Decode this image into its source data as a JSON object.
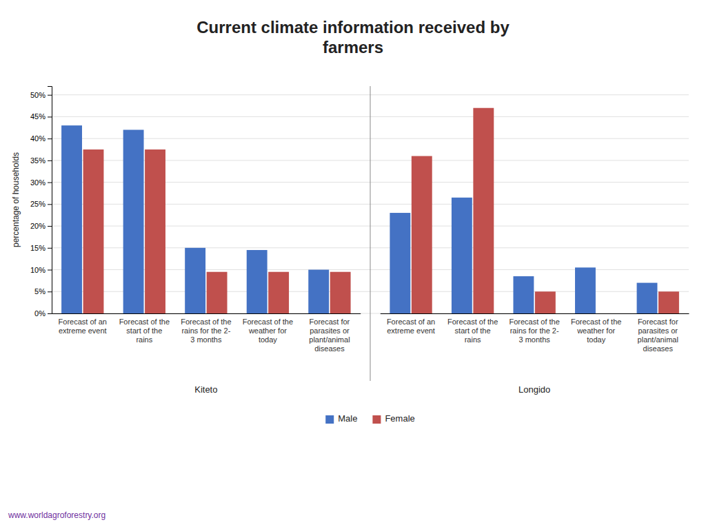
{
  "chart_data": {
    "type": "bar",
    "title": "Current climate information received by\nfarmers",
    "ylabel": "percentage of households",
    "groups": [
      {
        "label": "Kiteto",
        "categories": [
          "Forecast of an\nextreme event",
          "Forecast of the\nstart of the\nrains",
          "Forecast of the\nrains for the 2-\n3 months",
          "Forecast of the\nweather for\ntoday",
          "Forecast for\nparasites or\nplant/animal\ndiseases"
        ]
      },
      {
        "label": "Longido",
        "categories": [
          "Forecast of an\nextreme event",
          "Forecast of the\nstart of the\nrains",
          "Forecast of the\nrains for the 2-\n3 months",
          "Forecast of the\nweather for\ntoday",
          "Forecast for\nparasites or\nplant/animal\ndiseases"
        ]
      }
    ],
    "series": [
      {
        "name": "Male",
        "color": "#4472C4",
        "values": [
          43,
          42,
          15,
          14.5,
          10,
          23,
          26.5,
          8.5,
          10.5,
          7
        ]
      },
      {
        "name": "Female",
        "color": "#C0504D",
        "values": [
          37.5,
          37.5,
          9.5,
          9.5,
          9.5,
          36,
          47,
          5,
          0,
          5
        ]
      }
    ],
    "ylim": [
      0,
      52
    ],
    "yticks": [
      {
        "value": 0,
        "label": "0%"
      },
      {
        "value": 5,
        "label": "5%"
      },
      {
        "value": 10,
        "label": "10%"
      },
      {
        "value": 15,
        "label": "15%"
      },
      {
        "value": 20,
        "label": "20%"
      },
      {
        "value": 25,
        "label": "25%"
      },
      {
        "value": 30,
        "label": "30%"
      },
      {
        "value": 35,
        "label": "35%"
      },
      {
        "value": 40,
        "label": "40%"
      },
      {
        "value": 45,
        "label": "45%"
      },
      {
        "value": 50,
        "label": "50%"
      }
    ],
    "grid": true,
    "annotations": [
      {
        "text": "www.worldagroforestry.org",
        "color": "#7030A0"
      }
    ]
  }
}
